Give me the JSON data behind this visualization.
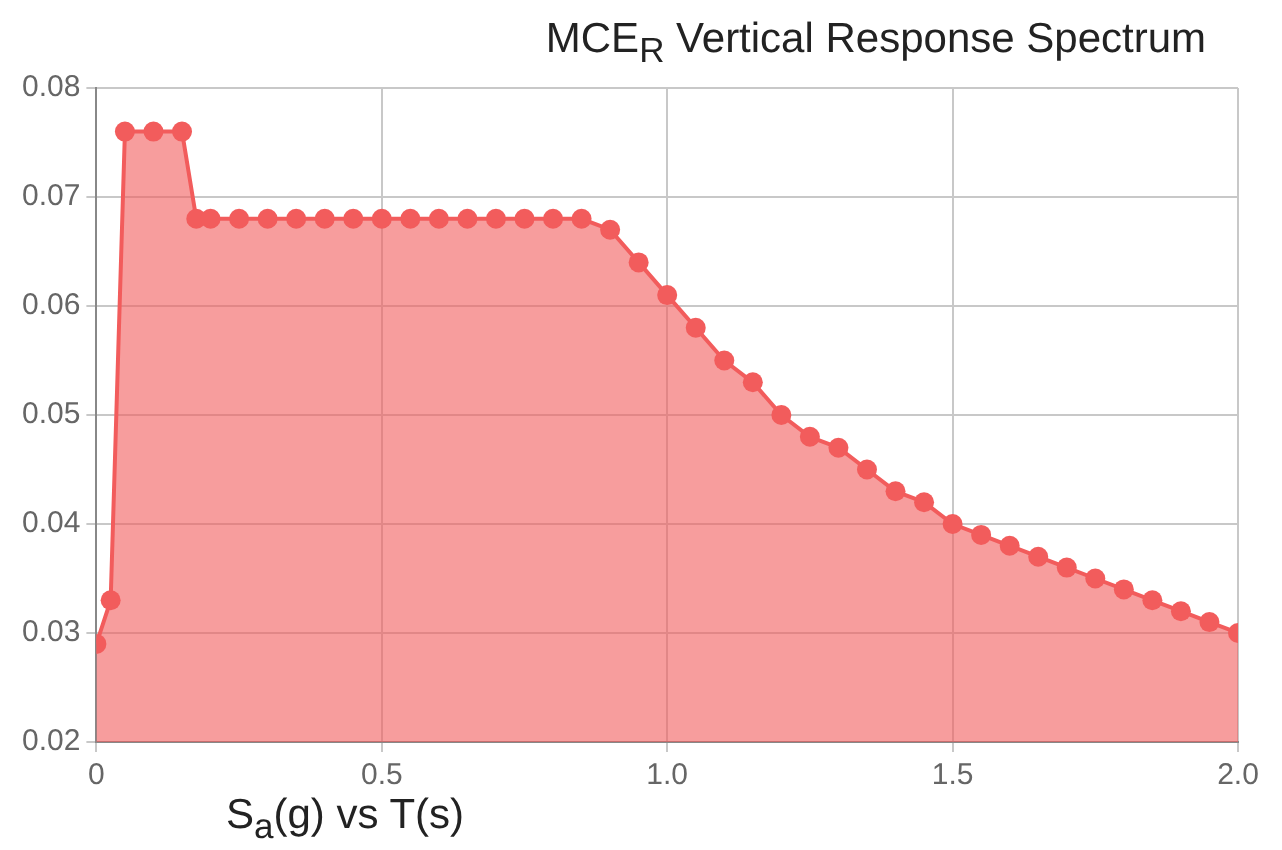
{
  "chart_data": {
    "type": "area",
    "title": "MCE$_{R}$ Vertical Response Spectrum",
    "xlabel": "S$_{a}$(g) vs T(s)",
    "x": [
      0,
      0.025,
      0.05,
      0.1,
      0.15,
      0.175,
      0.2,
      0.25,
      0.3,
      0.35,
      0.4,
      0.45,
      0.5,
      0.55,
      0.6,
      0.65,
      0.7,
      0.75,
      0.8,
      0.85,
      0.9,
      0.95,
      1.0,
      1.05,
      1.1,
      1.15,
      1.2,
      1.25,
      1.3,
      1.35,
      1.4,
      1.45,
      1.5,
      1.55,
      1.6,
      1.65,
      1.7,
      1.75,
      1.8,
      1.85,
      1.9,
      1.95,
      2.0
    ],
    "series": [
      {
        "color": "#f25c5c",
        "values": [
          0.029,
          0.033,
          0.076,
          0.076,
          0.076,
          0.068,
          0.068,
          0.068,
          0.068,
          0.068,
          0.068,
          0.068,
          0.068,
          0.068,
          0.068,
          0.068,
          0.068,
          0.068,
          0.068,
          0.068,
          0.067,
          0.064,
          0.061,
          0.058,
          0.055,
          0.053,
          0.05,
          0.048,
          0.047,
          0.045,
          0.043,
          0.042,
          0.04,
          0.039,
          0.038,
          0.037,
          0.036,
          0.035,
          0.034,
          0.033,
          0.032,
          0.031,
          0.03
        ]
      }
    ],
    "xlim": [
      0,
      2
    ],
    "xticks": [
      0,
      {
        "value": 0.5,
        "label": "0.5"
      },
      {
        "value": 1,
        "label": "1.0"
      },
      {
        "value": 1.5,
        "label": "1.5"
      },
      {
        "value": 2,
        "label": "2.0"
      }
    ],
    "ylim": [
      0.02,
      0.08
    ],
    "yticks": [
      0.02,
      0.03,
      0.04,
      0.05,
      0.06,
      0.07,
      0.08
    ],
    "grid": true,
    "marker": "circle"
  }
}
